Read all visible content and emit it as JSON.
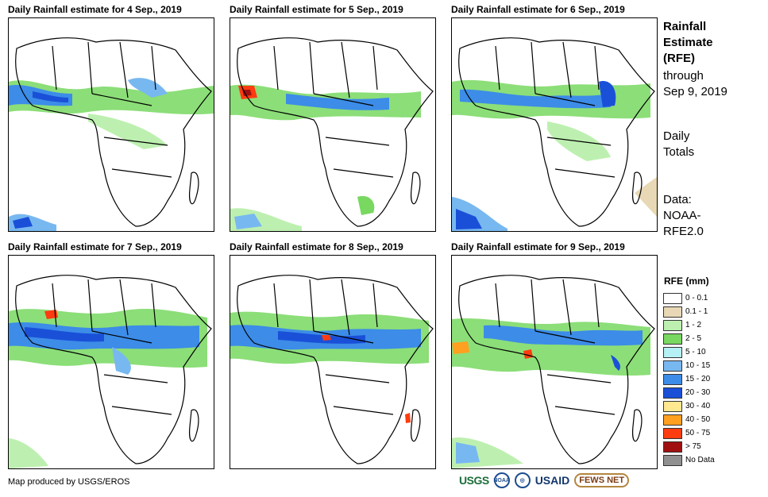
{
  "panels": [
    {
      "title": "Daily Rainfall estimate for 4 Sep., 2019"
    },
    {
      "title": "Daily Rainfall estimate for 5 Sep., 2019"
    },
    {
      "title": "Daily Rainfall estimate for 6 Sep., 2019"
    },
    {
      "title": "Daily Rainfall estimate for 7 Sep., 2019"
    },
    {
      "title": "Daily Rainfall estimate for 8 Sep., 2019"
    },
    {
      "title": "Daily Rainfall estimate for 9 Sep., 2019"
    }
  ],
  "side": {
    "title_lines": [
      "Rainfall",
      "Estimate",
      "(RFE)"
    ],
    "through_lines": [
      "through",
      "Sep 9, 2019"
    ],
    "totals_lines": [
      "Daily",
      "Totals"
    ],
    "data_lines": [
      "Data:",
      "NOAA-",
      "RFE2.0"
    ]
  },
  "legend": {
    "title": "RFE (mm)",
    "items": [
      {
        "label": "0 - 0.1",
        "color": "#ffffff"
      },
      {
        "label": "0.1 - 1",
        "color": "#e8d8b5"
      },
      {
        "label": "1 - 2",
        "color": "#bdf0b0"
      },
      {
        "label": "2 - 5",
        "color": "#78d860"
      },
      {
        "label": "5 - 10",
        "color": "#b5f0f5"
      },
      {
        "label": "10 - 15",
        "color": "#78b8f0"
      },
      {
        "label": "15 - 20",
        "color": "#3c8ce8"
      },
      {
        "label": "20 - 30",
        "color": "#1a50d8"
      },
      {
        "label": "30 - 40",
        "color": "#ffe890"
      },
      {
        "label": "40 - 50",
        "color": "#ffa020"
      },
      {
        "label": "50 - 75",
        "color": "#ff3c10"
      },
      {
        "label": "> 75",
        "color": "#a01010"
      },
      {
        "label": "No Data",
        "color": "#909090"
      }
    ]
  },
  "footer": {
    "credit": "Map produced by USGS/EROS"
  },
  "logos": {
    "usgs": "USGS",
    "noaa": "NOAA",
    "usaid": "USAID",
    "fews": "FEWS NET"
  }
}
